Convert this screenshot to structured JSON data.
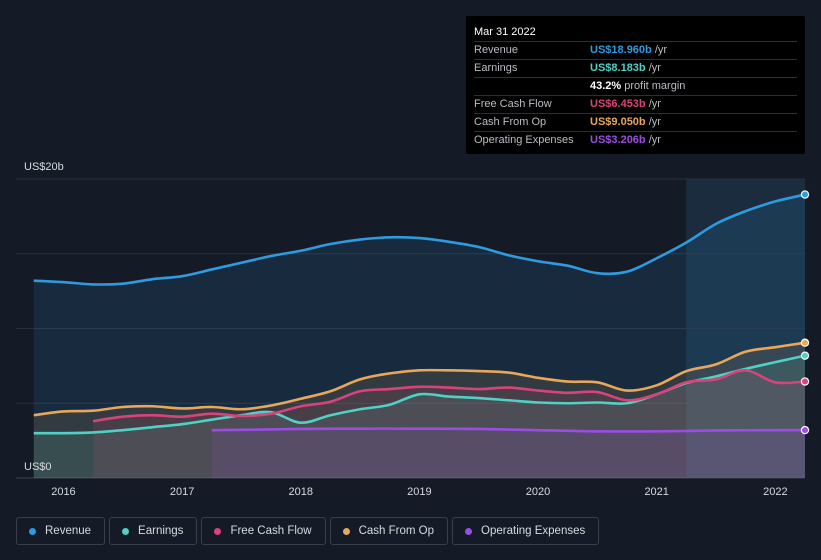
{
  "chart_data": {
    "type": "area",
    "y_axis": {
      "top_label": "US$20b",
      "bottom_label": "US$0",
      "ylim": [
        0,
        20
      ]
    },
    "x_ticks": [
      {
        "label": "2016",
        "x": 2016.0
      },
      {
        "label": "2017",
        "x": 2017.0
      },
      {
        "label": "2018",
        "x": 2018.0
      },
      {
        "label": "2019",
        "x": 2019.0
      },
      {
        "label": "2020",
        "x": 2020.0
      },
      {
        "label": "2021",
        "x": 2021.0
      },
      {
        "label": "2022",
        "x": 2022.0
      }
    ],
    "xlim": [
      2015.6,
      2022.25
    ],
    "highlight_range": [
      2021.25,
      2022.25
    ],
    "series": [
      {
        "name": "Revenue",
        "color": "#2e9ae0",
        "points": [
          [
            2015.75,
            13.2
          ],
          [
            2016.0,
            13.1
          ],
          [
            2016.25,
            12.95
          ],
          [
            2016.5,
            13.0
          ],
          [
            2016.75,
            13.3
          ],
          [
            2017.0,
            13.5
          ],
          [
            2017.25,
            13.95
          ],
          [
            2017.5,
            14.4
          ],
          [
            2017.75,
            14.85
          ],
          [
            2018.0,
            15.2
          ],
          [
            2018.25,
            15.65
          ],
          [
            2018.5,
            15.95
          ],
          [
            2018.75,
            16.1
          ],
          [
            2019.0,
            16.05
          ],
          [
            2019.25,
            15.8
          ],
          [
            2019.5,
            15.45
          ],
          [
            2019.75,
            14.9
          ],
          [
            2020.0,
            14.5
          ],
          [
            2020.25,
            14.2
          ],
          [
            2020.5,
            13.7
          ],
          [
            2020.75,
            13.8
          ],
          [
            2021.0,
            14.7
          ],
          [
            2021.25,
            15.75
          ],
          [
            2021.5,
            17.0
          ],
          [
            2021.75,
            17.85
          ],
          [
            2022.0,
            18.5
          ],
          [
            2022.25,
            18.96
          ]
        ]
      },
      {
        "name": "Earnings",
        "color": "#4fd1c5",
        "points": [
          [
            2015.75,
            3.0
          ],
          [
            2016.0,
            3.0
          ],
          [
            2016.25,
            3.05
          ],
          [
            2016.5,
            3.2
          ],
          [
            2016.75,
            3.4
          ],
          [
            2017.0,
            3.6
          ],
          [
            2017.25,
            3.9
          ],
          [
            2017.5,
            4.2
          ],
          [
            2017.75,
            4.4
          ],
          [
            2018.0,
            3.7
          ],
          [
            2018.25,
            4.2
          ],
          [
            2018.5,
            4.6
          ],
          [
            2018.75,
            4.9
          ],
          [
            2019.0,
            5.6
          ],
          [
            2019.25,
            5.45
          ],
          [
            2019.5,
            5.35
          ],
          [
            2019.75,
            5.2
          ],
          [
            2020.0,
            5.05
          ],
          [
            2020.25,
            5.0
          ],
          [
            2020.5,
            5.05
          ],
          [
            2020.75,
            5.0
          ],
          [
            2021.0,
            5.6
          ],
          [
            2021.25,
            6.35
          ],
          [
            2021.5,
            6.8
          ],
          [
            2021.75,
            7.3
          ],
          [
            2022.0,
            7.75
          ],
          [
            2022.25,
            8.183
          ]
        ]
      },
      {
        "name": "Free Cash Flow",
        "color": "#d9437a",
        "points": [
          [
            2016.25,
            3.8
          ],
          [
            2016.5,
            4.1
          ],
          [
            2016.75,
            4.2
          ],
          [
            2017.0,
            4.1
          ],
          [
            2017.25,
            4.3
          ],
          [
            2017.5,
            4.15
          ],
          [
            2017.75,
            4.3
          ],
          [
            2018.0,
            4.8
          ],
          [
            2018.25,
            5.1
          ],
          [
            2018.5,
            5.8
          ],
          [
            2018.75,
            5.95
          ],
          [
            2019.0,
            6.1
          ],
          [
            2019.25,
            6.05
          ],
          [
            2019.5,
            5.95
          ],
          [
            2019.75,
            6.05
          ],
          [
            2020.0,
            5.85
          ],
          [
            2020.25,
            5.7
          ],
          [
            2020.5,
            5.75
          ],
          [
            2020.75,
            5.2
          ],
          [
            2021.0,
            5.6
          ],
          [
            2021.25,
            6.4
          ],
          [
            2021.5,
            6.6
          ],
          [
            2021.75,
            7.2
          ],
          [
            2022.0,
            6.4
          ],
          [
            2022.25,
            6.453
          ]
        ]
      },
      {
        "name": "Cash From Op",
        "color": "#e8a75a",
        "points": [
          [
            2015.75,
            4.2
          ],
          [
            2016.0,
            4.45
          ],
          [
            2016.25,
            4.5
          ],
          [
            2016.5,
            4.75
          ],
          [
            2016.75,
            4.8
          ],
          [
            2017.0,
            4.65
          ],
          [
            2017.25,
            4.75
          ],
          [
            2017.5,
            4.6
          ],
          [
            2017.75,
            4.85
          ],
          [
            2018.0,
            5.3
          ],
          [
            2018.25,
            5.8
          ],
          [
            2018.5,
            6.6
          ],
          [
            2018.75,
            7.0
          ],
          [
            2019.0,
            7.2
          ],
          [
            2019.25,
            7.2
          ],
          [
            2019.5,
            7.15
          ],
          [
            2019.75,
            7.05
          ],
          [
            2020.0,
            6.7
          ],
          [
            2020.25,
            6.45
          ],
          [
            2020.5,
            6.4
          ],
          [
            2020.75,
            5.85
          ],
          [
            2021.0,
            6.2
          ],
          [
            2021.25,
            7.15
          ],
          [
            2021.5,
            7.6
          ],
          [
            2021.75,
            8.45
          ],
          [
            2022.0,
            8.75
          ],
          [
            2022.25,
            9.05
          ]
        ]
      },
      {
        "name": "Operating Expenses",
        "color": "#9b4de3",
        "points": [
          [
            2017.25,
            3.2
          ],
          [
            2017.5,
            3.22
          ],
          [
            2017.75,
            3.25
          ],
          [
            2018.0,
            3.28
          ],
          [
            2018.5,
            3.3
          ],
          [
            2019.0,
            3.3
          ],
          [
            2019.5,
            3.28
          ],
          [
            2020.0,
            3.2
          ],
          [
            2020.5,
            3.12
          ],
          [
            2021.0,
            3.12
          ],
          [
            2021.5,
            3.18
          ],
          [
            2022.0,
            3.2
          ],
          [
            2022.25,
            3.206
          ]
        ]
      }
    ]
  },
  "tooltip": {
    "date": "Mar 31 2022",
    "rows": [
      {
        "label": "Revenue",
        "value": "US$18.960b",
        "unit": " /yr",
        "color": "#2e9ae0"
      },
      {
        "label": "Earnings",
        "value": "US$8.183b",
        "unit": " /yr",
        "color": "#4fd1c5"
      },
      {
        "label": "",
        "value": "43.2%",
        "unit": " profit margin",
        "color": "#ffffff"
      },
      {
        "label": "Free Cash Flow",
        "value": "US$6.453b",
        "unit": " /yr",
        "color": "#d9437a"
      },
      {
        "label": "Cash From Op",
        "value": "US$9.050b",
        "unit": " /yr",
        "color": "#e8a75a"
      },
      {
        "label": "Operating Expenses",
        "value": "US$3.206b",
        "unit": " /yr",
        "color": "#9b4de3"
      }
    ]
  },
  "legend": [
    {
      "label": "Revenue",
      "color": "#2e9ae0"
    },
    {
      "label": "Earnings",
      "color": "#4fd1c5"
    },
    {
      "label": "Free Cash Flow",
      "color": "#d9437a"
    },
    {
      "label": "Cash From Op",
      "color": "#e8a75a"
    },
    {
      "label": "Operating Expenses",
      "color": "#9b4de3"
    }
  ]
}
